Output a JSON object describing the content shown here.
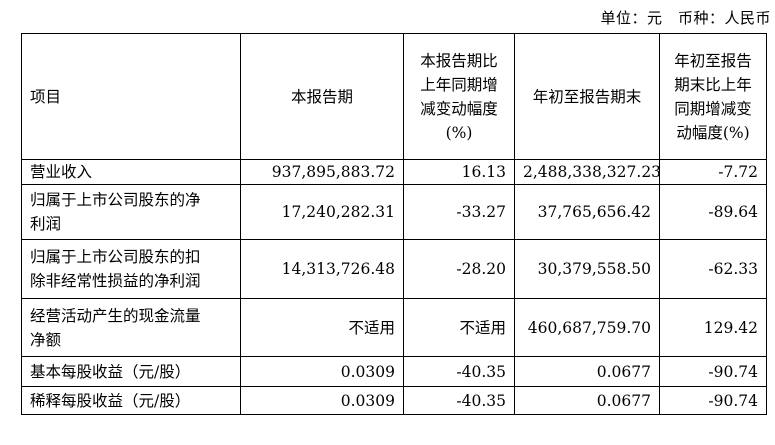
{
  "unit_label": "单位：元　币种：人民币",
  "table": {
    "headers": [
      [
        "项目"
      ],
      [
        "本报告期"
      ],
      [
        "本报告期比",
        "上年同期增",
        "减变动幅度",
        "(%)"
      ],
      [
        "年初至报告期末"
      ],
      [
        "年初至报告",
        "期末比上年",
        "同期增减变",
        "动幅度(%)"
      ]
    ],
    "rows": [
      {
        "item": [
          "营业收入"
        ],
        "current": "937,895,883.72",
        "current_change": "16.13",
        "ytd": "2,488,338,327.23",
        "ytd_change": "-7.72"
      },
      {
        "item": [
          "归属于上市公司股东的净",
          "利润"
        ],
        "current": "17,240,282.31",
        "current_change": "-33.27",
        "ytd": "37,765,656.42",
        "ytd_change": "-89.64"
      },
      {
        "item": [
          "归属于上市公司股东的扣",
          "除非经常性损益的净利润"
        ],
        "current": "14,313,726.48",
        "current_change": "-28.20",
        "ytd": "30,379,558.50",
        "ytd_change": "-62.33"
      },
      {
        "item": [
          "经营活动产生的现金流量",
          "净额"
        ],
        "current": "不适用",
        "current_change": "不适用",
        "ytd": "460,687,759.70",
        "ytd_change": "129.42"
      },
      {
        "item": [
          "基本每股收益（元/股）"
        ],
        "current": "0.0309",
        "current_change": "-40.35",
        "ytd": "0.0677",
        "ytd_change": "-90.74"
      },
      {
        "item": [
          "稀释每股收益（元/股）"
        ],
        "current": "0.0309",
        "current_change": "-40.35",
        "ytd": "0.0677",
        "ytd_change": "-90.74"
      }
    ]
  }
}
